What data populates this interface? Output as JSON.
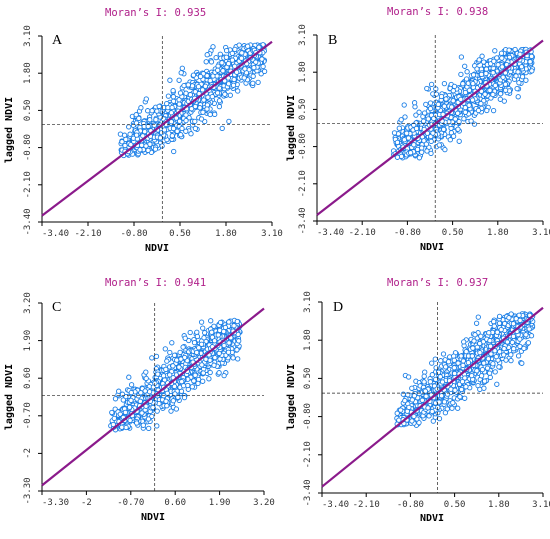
{
  "chart_data": [
    {
      "type": "scatter",
      "panel_label": "A",
      "title": "Moran’s I: 0.935",
      "xlabel": "NDVI",
      "ylabel": "lagged NDVI",
      "xticks": [
        "-3.40",
        "-2.10",
        "-0.80",
        "0.50",
        "1.80",
        "3.10"
      ],
      "yticks": [
        "-3.40",
        "-2.10",
        "-0.80",
        "0.50",
        "1.80",
        "3.10"
      ],
      "xlim": [
        -3.4,
        3.1
      ],
      "ylim": [
        -3.4,
        3.1
      ],
      "regression_slope": 0.935,
      "point_extent": {
        "xmin": -1.2,
        "xmax": 2.9,
        "ymin": -1.1,
        "ymax": 2.8
      },
      "grid": false
    },
    {
      "type": "scatter",
      "panel_label": "B",
      "title": "Moran’s I: 0.938",
      "xlabel": "NDVI",
      "ylabel": "lagged NDVI",
      "xticks": [
        "-3.40",
        "-2.10",
        "-0.80",
        "0.50",
        "1.80",
        "3.10"
      ],
      "yticks": [
        "-3.40",
        "-2.10",
        "-0.80",
        "0.50",
        "1.80",
        "3.10"
      ],
      "xlim": [
        -3.4,
        3.1
      ],
      "ylim": [
        -3.4,
        3.1
      ],
      "regression_slope": 0.938,
      "point_extent": {
        "xmin": -1.2,
        "xmax": 2.8,
        "ymin": -1.2,
        "ymax": 2.6
      },
      "grid": false
    },
    {
      "type": "scatter",
      "panel_label": "C",
      "title": "Moran’s I: 0.941",
      "xlabel": "NDVI",
      "ylabel": "lagged NDVI",
      "xticks": [
        "-3.30",
        "-2",
        "-0.70",
        "0.60",
        "1.90",
        "3.20"
      ],
      "yticks": [
        "-3.30",
        "-2",
        "-0.70",
        "0.60",
        "1.90",
        "3.20"
      ],
      "xlim": [
        -3.3,
        3.2
      ],
      "ylim": [
        -3.3,
        3.2
      ],
      "regression_slope": 0.941,
      "point_extent": {
        "xmin": -1.3,
        "xmax": 2.5,
        "ymin": -1.2,
        "ymax": 2.6
      },
      "grid": false
    },
    {
      "type": "scatter",
      "panel_label": "D",
      "title": "Moran’s I: 0.937",
      "xlabel": "NDVI",
      "ylabel": "lagged NDVI",
      "xticks": [
        "-3.40",
        "-2.10",
        "-0.80",
        "0.50",
        "1.80",
        "3.10"
      ],
      "yticks": [
        "-3.40",
        "-2.10",
        "-0.80",
        "0.50",
        "1.80",
        "3.10"
      ],
      "xlim": [
        -3.4,
        3.1
      ],
      "ylim": [
        -3.4,
        3.1
      ],
      "regression_slope": 0.937,
      "point_extent": {
        "xmin": -1.2,
        "xmax": 2.8,
        "ymin": -1.1,
        "ymax": 2.7
      },
      "grid": false
    }
  ],
  "colors": {
    "points": "#1a7ee6",
    "regression_line": "#8b1a8b",
    "title": "#b0208a"
  }
}
